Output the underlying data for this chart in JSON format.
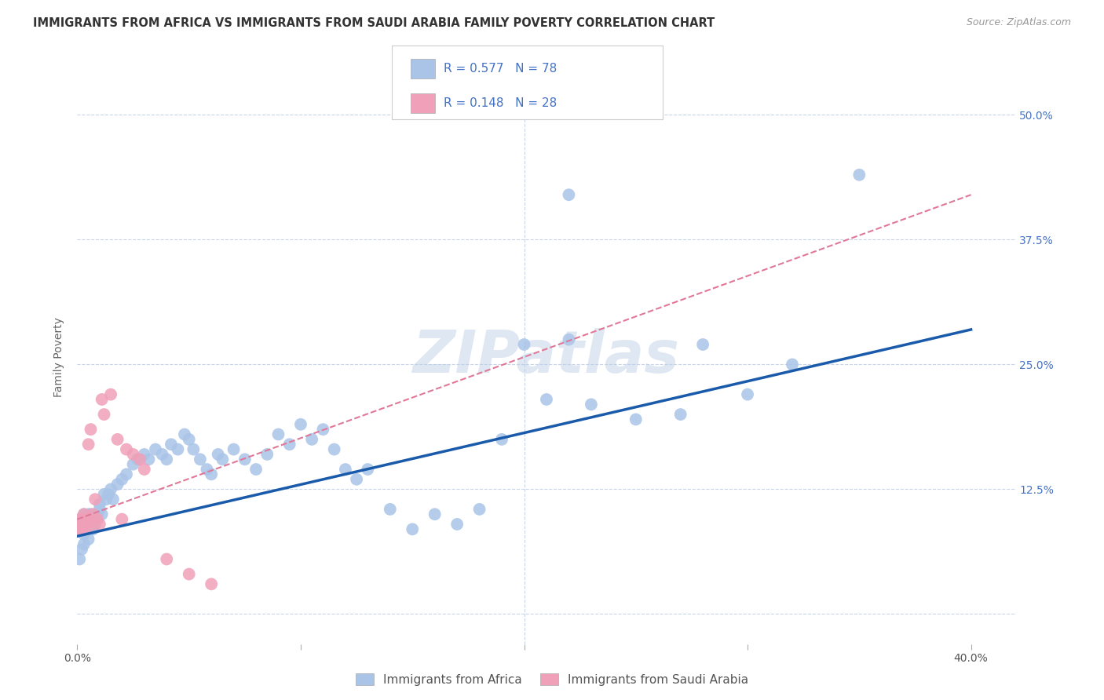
{
  "title": "IMMIGRANTS FROM AFRICA VS IMMIGRANTS FROM SAUDI ARABIA FAMILY POVERTY CORRELATION CHART",
  "source": "Source: ZipAtlas.com",
  "ylabel": "Family Poverty",
  "xlim": [
    0.0,
    0.42
  ],
  "ylim": [
    -0.03,
    0.545
  ],
  "africa_R": 0.577,
  "africa_N": 78,
  "saudi_R": 0.148,
  "saudi_N": 28,
  "africa_color": "#aac4e8",
  "saudi_color": "#f0a0b8",
  "africa_line_color": "#1a5aaa",
  "saudi_line_color": "#e07898",
  "background_color": "#ffffff",
  "grid_color": "#c8d4e8",
  "watermark": "ZIPatlas",
  "africa_line_x0": 0.0,
  "africa_line_y0": 0.078,
  "africa_line_x1": 0.4,
  "africa_line_y1": 0.285,
  "saudi_line_x0": 0.0,
  "saudi_line_y0": 0.095,
  "saudi_line_x1": 0.4,
  "saudi_line_y1": 0.42,
  "africa_x": [
    0.001,
    0.002,
    0.002,
    0.003,
    0.003,
    0.004,
    0.004,
    0.005,
    0.005,
    0.006,
    0.006,
    0.007,
    0.007,
    0.008,
    0.008,
    0.009,
    0.01,
    0.01,
    0.011,
    0.012,
    0.013,
    0.014,
    0.015,
    0.016,
    0.018,
    0.02,
    0.022,
    0.025,
    0.027,
    0.03,
    0.032,
    0.035,
    0.038,
    0.04,
    0.042,
    0.045,
    0.048,
    0.05,
    0.052,
    0.055,
    0.058,
    0.06,
    0.063,
    0.065,
    0.07,
    0.075,
    0.08,
    0.085,
    0.09,
    0.095,
    0.1,
    0.105,
    0.11,
    0.115,
    0.12,
    0.125,
    0.13,
    0.14,
    0.15,
    0.16,
    0.17,
    0.18,
    0.19,
    0.2,
    0.21,
    0.22,
    0.23,
    0.25,
    0.27,
    0.28,
    0.3,
    0.32,
    0.001,
    0.002,
    0.003,
    0.005,
    0.22,
    0.35
  ],
  "africa_y": [
    0.085,
    0.09,
    0.095,
    0.08,
    0.1,
    0.09,
    0.095,
    0.085,
    0.1,
    0.09,
    0.1,
    0.095,
    0.085,
    0.09,
    0.095,
    0.1,
    0.105,
    0.11,
    0.1,
    0.12,
    0.115,
    0.12,
    0.125,
    0.115,
    0.13,
    0.135,
    0.14,
    0.15,
    0.155,
    0.16,
    0.155,
    0.165,
    0.16,
    0.155,
    0.17,
    0.165,
    0.18,
    0.175,
    0.165,
    0.155,
    0.145,
    0.14,
    0.16,
    0.155,
    0.165,
    0.155,
    0.145,
    0.16,
    0.18,
    0.17,
    0.19,
    0.175,
    0.185,
    0.165,
    0.145,
    0.135,
    0.145,
    0.105,
    0.085,
    0.1,
    0.09,
    0.105,
    0.175,
    0.27,
    0.215,
    0.275,
    0.21,
    0.195,
    0.2,
    0.27,
    0.22,
    0.25,
    0.055,
    0.065,
    0.07,
    0.075,
    0.42,
    0.44
  ],
  "saudi_x": [
    0.001,
    0.001,
    0.002,
    0.002,
    0.003,
    0.003,
    0.004,
    0.004,
    0.005,
    0.005,
    0.006,
    0.007,
    0.007,
    0.008,
    0.009,
    0.01,
    0.011,
    0.012,
    0.015,
    0.018,
    0.02,
    0.022,
    0.025,
    0.028,
    0.03,
    0.04,
    0.05,
    0.06
  ],
  "saudi_y": [
    0.085,
    0.095,
    0.085,
    0.09,
    0.095,
    0.1,
    0.085,
    0.09,
    0.095,
    0.17,
    0.185,
    0.09,
    0.1,
    0.115,
    0.095,
    0.09,
    0.215,
    0.2,
    0.22,
    0.175,
    0.095,
    0.165,
    0.16,
    0.155,
    0.145,
    0.055,
    0.04,
    0.03
  ]
}
